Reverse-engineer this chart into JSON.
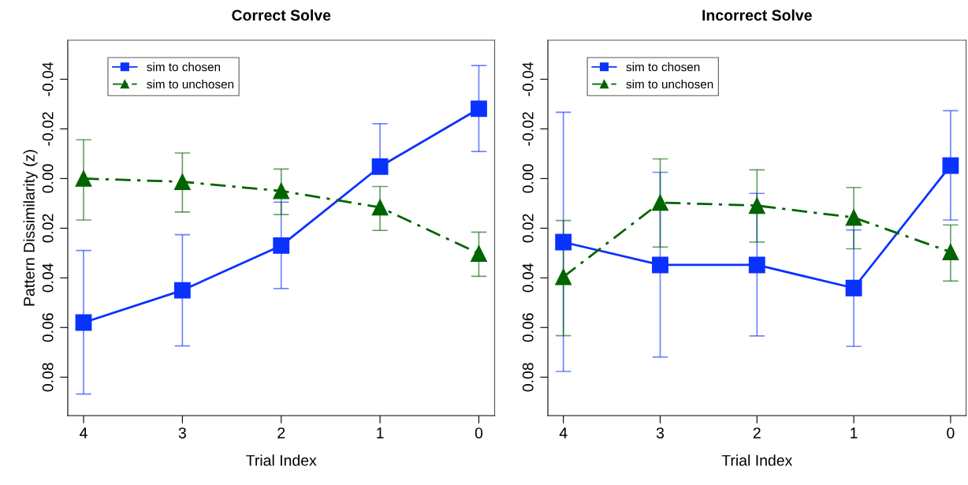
{
  "chart_data": [
    {
      "type": "line",
      "title": "Correct Solve",
      "xlabel": "Trial Index",
      "ylabel": "Pattern Dissimilarity (z)",
      "x": [
        4,
        3,
        2,
        1,
        0
      ],
      "xlim": [
        4.16,
        -0.16
      ],
      "xticks": [
        4,
        3,
        2,
        1,
        0
      ],
      "ylim": [
        0.0955,
        -0.0557
      ],
      "yticks": [
        {
          "value": -0.04,
          "label": "-0.04"
        },
        {
          "value": -0.02,
          "label": "-0.02"
        },
        {
          "value": 0,
          "label": "0.00"
        },
        {
          "value": 0.02,
          "label": "0.02"
        },
        {
          "value": 0.04,
          "label": "0.04"
        },
        {
          "value": 0.06,
          "label": "0.06"
        },
        {
          "value": 0.08,
          "label": "0.08"
        }
      ],
      "legend": "top left",
      "grid": false,
      "series": [
        {
          "name": "sim to chosen",
          "color": "#0a32ff",
          "marker": "square",
          "line_style": "solid",
          "values": [
            0.058,
            0.045,
            0.027,
            -0.0048,
            -0.0281
          ],
          "errors": [
            [
              0.029,
              0.0868
            ],
            [
              0.0226,
              0.0674
            ],
            [
              0.0095,
              0.0443
            ],
            [
              -0.0221,
              -0.0048
            ],
            [
              -0.0455,
              -0.0109
            ]
          ]
        },
        {
          "name": "sim to unchosen",
          "color": "#006400",
          "marker": "triangle",
          "line_style": "dashdot",
          "values": [
            0.0,
            0.0013,
            0.005,
            0.0116,
            0.0302
          ],
          "errors": [
            [
              -0.0156,
              0.0167
            ],
            [
              -0.0103,
              0.0135
            ],
            [
              -0.0038,
              0.0145
            ],
            [
              0.0032,
              0.0209
            ],
            [
              0.0216,
              0.0394
            ]
          ]
        }
      ]
    },
    {
      "type": "line",
      "title": "Incorrect Solve",
      "xlabel": "Trial Index",
      "x": [
        4,
        3,
        2,
        1,
        0
      ],
      "xlim": [
        4.16,
        -0.16
      ],
      "xticks": [
        4,
        3,
        2,
        1,
        0
      ],
      "ylim": [
        0.0955,
        -0.0557
      ],
      "yticks": [
        {
          "value": -0.04,
          "label": "-0.04"
        },
        {
          "value": -0.02,
          "label": "-0.02"
        },
        {
          "value": 0,
          "label": "0.00"
        },
        {
          "value": 0.02,
          "label": "0.02"
        },
        {
          "value": 0.04,
          "label": "0.04"
        },
        {
          "value": 0.06,
          "label": "0.06"
        },
        {
          "value": 0.08,
          "label": "0.08"
        }
      ],
      "legend": "top left",
      "grid": false,
      "series": [
        {
          "name": "sim to chosen",
          "color": "#0a32ff",
          "marker": "square",
          "line_style": "solid",
          "values": [
            0.0256,
            0.0348,
            0.0348,
            0.0441,
            -0.0052
          ],
          "errors": [
            [
              -0.0267,
              0.0777
            ],
            [
              -0.0025,
              0.0719
            ],
            [
              0.006,
              0.0634
            ],
            [
              0.0207,
              0.0676
            ],
            [
              -0.0273,
              0.0167
            ]
          ]
        },
        {
          "name": "sim to unchosen",
          "color": "#006400",
          "marker": "triangle",
          "line_style": "dashdot",
          "values": [
            0.0396,
            0.0097,
            0.0109,
            0.0157,
            0.0296
          ],
          "errors": [
            [
              0.0169,
              0.0633
            ],
            [
              -0.0079,
              0.0276
            ],
            [
              -0.0035,
              0.0256
            ],
            [
              0.0036,
              0.0283
            ],
            [
              0.0187,
              0.0413
            ]
          ]
        }
      ]
    }
  ]
}
